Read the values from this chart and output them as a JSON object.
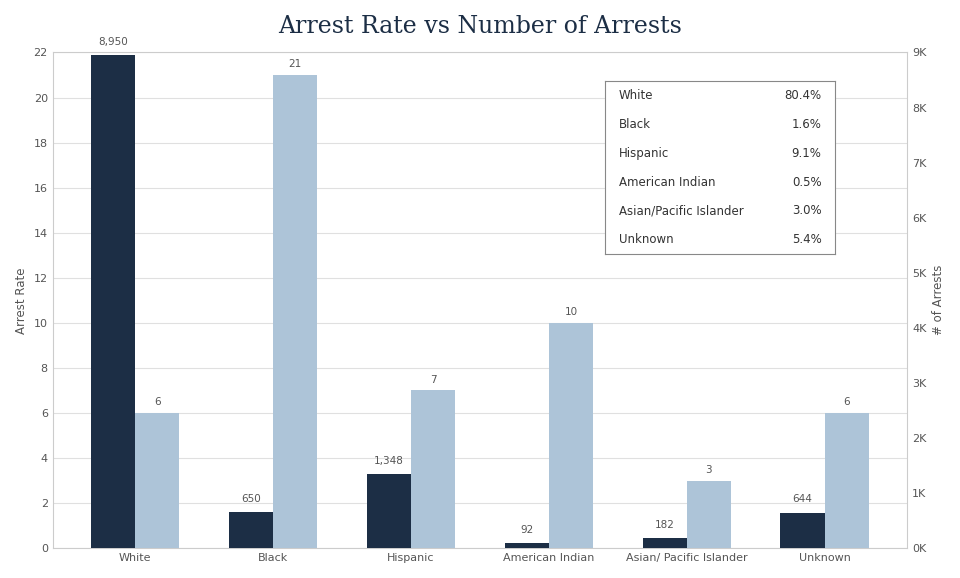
{
  "title": "Arrest Rate vs Number of Arrests",
  "categories": [
    "White",
    "Black",
    "Hispanic",
    "American Indian",
    "Asian/ Pacific Islander",
    "Unknown"
  ],
  "arrest_rates": [
    6,
    21,
    7,
    10,
    3,
    6
  ],
  "num_arrests": [
    8950,
    650,
    1348,
    92,
    182,
    644
  ],
  "rate_labels": [
    "6",
    "21",
    "7",
    "10",
    "3",
    "6"
  ],
  "arrest_labels": [
    "8,950",
    "650",
    "1,348",
    "92",
    "182",
    "644"
  ],
  "bar_color_light": "#adc4d8",
  "bar_color_dark": "#1c2e45",
  "ylabel_left": "Arrest Rate",
  "ylabel_right": "# of Arrests",
  "ylim_left": [
    0,
    22
  ],
  "ylim_right": [
    0,
    9000
  ],
  "yticks_left": [
    0,
    2,
    4,
    6,
    8,
    10,
    12,
    14,
    16,
    18,
    20,
    22
  ],
  "yticks_right": [
    0,
    1000,
    2000,
    3000,
    4000,
    5000,
    6000,
    7000,
    8000,
    9000
  ],
  "ytick_labels_right": [
    "0K",
    "1K",
    "2K",
    "3K",
    "4K",
    "5K",
    "6K",
    "7K",
    "8K",
    "9K"
  ],
  "legend_labels": [
    "White",
    "Black",
    "Hispanic",
    "American Indian",
    "Asian/Pacific Islander",
    "Unknown"
  ],
  "legend_percents": [
    "80.4%",
    "1.6%",
    "9.1%",
    "0.5%",
    "3.0%",
    "5.4%"
  ],
  "background_color": "#ffffff",
  "plot_background": "#ffffff",
  "title_fontsize": 17,
  "axis_label_fontsize": 8.5,
  "tick_fontsize": 8,
  "bar_label_fontsize": 7.5,
  "legend_fontsize": 8.5,
  "grid_color": "#e0e0e0"
}
